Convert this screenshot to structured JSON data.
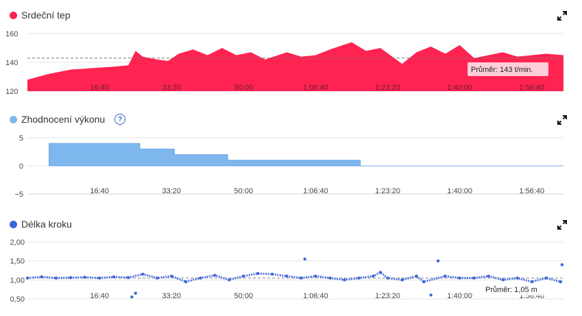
{
  "panels": {
    "heart_rate": {
      "title": "Srdeční tep",
      "color": "#ff2352",
      "average_label": "Průměr: 143 t/min."
    },
    "performance": {
      "title": "Zhodnocení výkonu",
      "color": "#7eb6ee",
      "help_icon": "question-circle-icon",
      "help_label": "?"
    },
    "stride": {
      "title": "Délka kroku",
      "color": "#3e66dc",
      "average_label": "Průměr: 1,05 m"
    }
  },
  "expand_icon": "expand-arrows-icon",
  "chart_data": [
    {
      "type": "area",
      "title": "Srdeční tep",
      "x_unit": "elapsed time (s)",
      "x_ticks": [
        "16:40",
        "33:20",
        "50:00",
        "1:06:40",
        "1:23:20",
        "1:40:00",
        "1:56:40"
      ],
      "y_ticks": [
        "120",
        "140",
        "160"
      ],
      "ylim": [
        120,
        160
      ],
      "xlim": [
        0,
        7440
      ],
      "average": 143,
      "series": [
        {
          "x": [
            0,
            300,
            600,
            900,
            1200,
            1400,
            1500,
            1600,
            1800,
            1950,
            2100,
            2300,
            2500,
            2700,
            2900,
            3100,
            3300,
            3600,
            3800,
            4000,
            4200,
            4500,
            4700,
            4900,
            5200,
            5400,
            5600,
            5800,
            6000,
            6200,
            6400,
            6600,
            6800,
            7000,
            7200,
            7440
          ],
          "values": [
            128,
            132,
            135,
            136,
            137,
            138,
            148,
            144,
            142,
            141,
            146,
            149,
            145,
            150,
            145,
            147,
            142,
            147,
            144,
            145,
            149,
            154,
            148,
            150,
            139,
            147,
            151,
            146,
            152,
            143,
            145,
            147,
            144,
            145,
            146,
            145
          ]
        }
      ]
    },
    {
      "type": "area",
      "title": "Zhodnocení výkonu",
      "x_unit": "elapsed time (s)",
      "x_ticks": [
        "16:40",
        "33:20",
        "50:00",
        "1:06:40",
        "1:23:20",
        "1:40:00",
        "1:56:40"
      ],
      "y_ticks": [
        "5",
        "0",
        "−5"
      ],
      "ylim": [
        -5,
        5
      ],
      "xlim": [
        0,
        7440
      ],
      "series": [
        {
          "x": [
            300,
            1560,
            1560,
            2040,
            2040,
            2780,
            2780,
            4620,
            4620,
            7440
          ],
          "values": [
            4,
            4,
            3,
            3,
            2,
            2,
            1,
            1,
            0,
            0
          ]
        }
      ]
    },
    {
      "type": "scatter",
      "title": "Délka kroku",
      "x_unit": "elapsed time (s)",
      "x_ticks": [
        "16:40",
        "33:20",
        "50:00",
        "1:06:40",
        "1:23:20",
        "1:40:00",
        "1:56:40"
      ],
      "y_ticks": [
        "2,00",
        "1,50",
        "1,00",
        "0,50"
      ],
      "ylim": [
        0.5,
        2.0
      ],
      "xlim": [
        0,
        7440
      ],
      "average": 1.05,
      "series": [
        {
          "x": [
            0,
            200,
            400,
            600,
            800,
            1000,
            1200,
            1400,
            1450,
            1500,
            1600,
            1800,
            2000,
            2200,
            2400,
            2600,
            2800,
            3000,
            3200,
            3400,
            3600,
            3800,
            3850,
            4000,
            4200,
            4400,
            4600,
            4800,
            4900,
            5000,
            5200,
            5400,
            5500,
            5600,
            5700,
            5800,
            6000,
            6200,
            6400,
            6600,
            6800,
            7000,
            7200,
            7400,
            7420
          ],
          "values": [
            1.05,
            1.08,
            1.05,
            1.06,
            1.07,
            1.05,
            1.08,
            1.06,
            0.55,
            0.65,
            1.15,
            1.05,
            1.1,
            0.95,
            1.05,
            1.12,
            1.0,
            1.1,
            1.17,
            1.15,
            1.1,
            1.05,
            1.55,
            1.1,
            1.05,
            1.0,
            1.05,
            1.1,
            1.2,
            1.05,
            1.0,
            1.1,
            0.95,
            0.6,
            1.5,
            1.1,
            1.05,
            1.05,
            1.1,
            1.0,
            1.05,
            0.95,
            1.05,
            0.95,
            1.4
          ]
        }
      ]
    }
  ]
}
